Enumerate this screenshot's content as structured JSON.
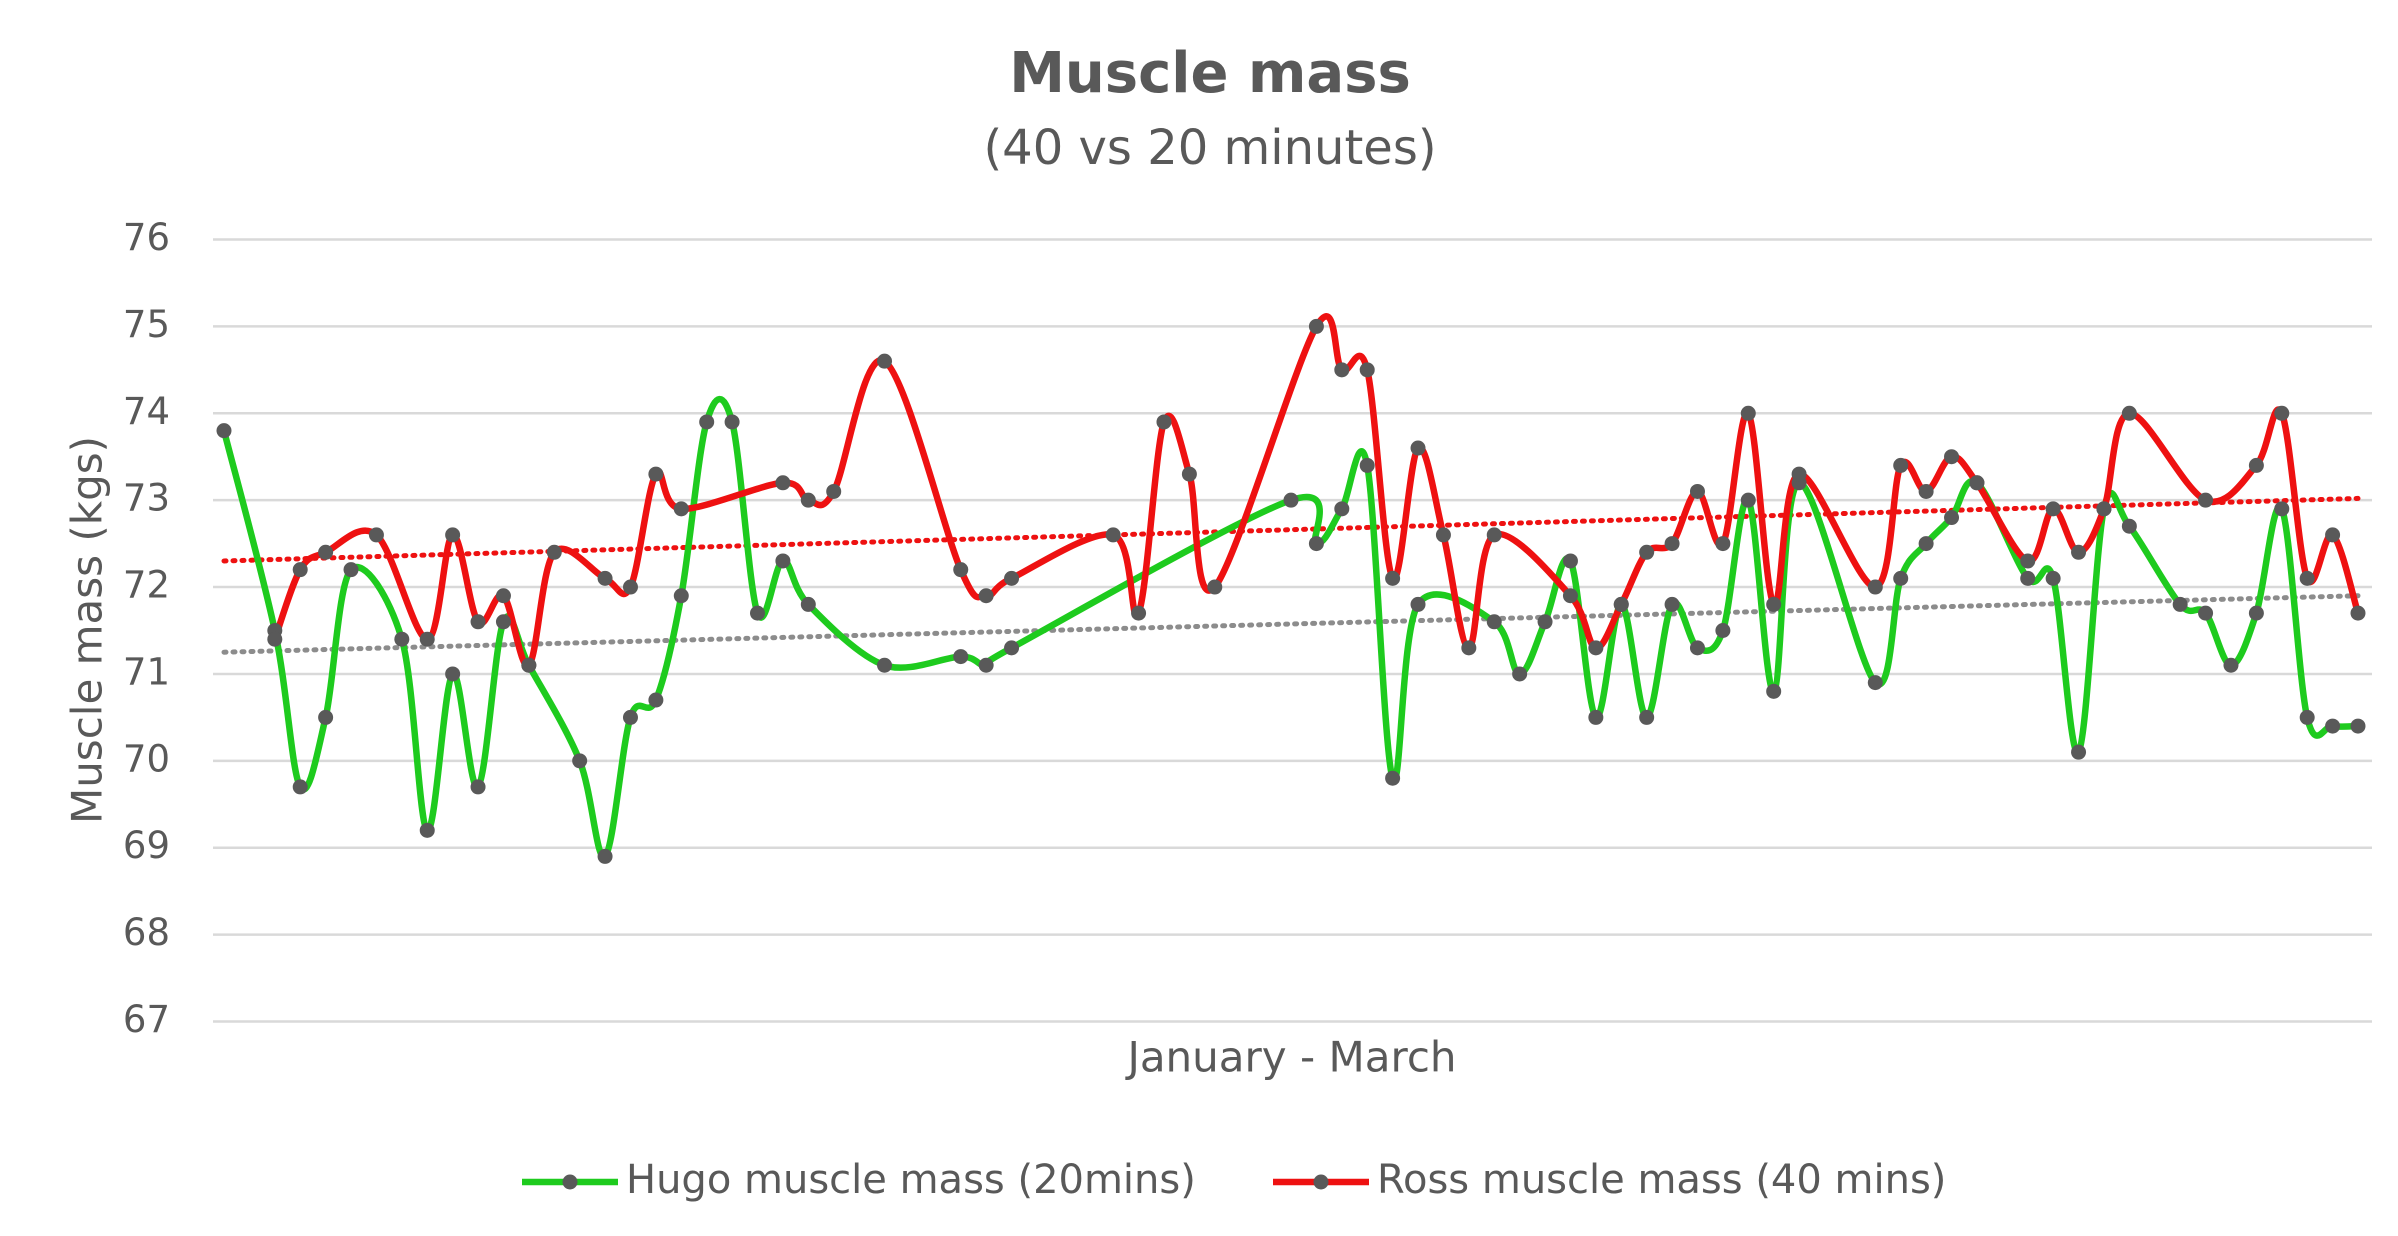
{
  "chart_data": {
    "type": "line",
    "title": "Muscle mass",
    "subtitle": "(40 vs 20 minutes)",
    "x_label": "January - March",
    "y_label": "Muscle mass (kgs)",
    "categories": [
      null,
      null,
      null,
      null,
      null,
      null,
      null,
      null,
      null,
      null,
      null,
      null,
      null,
      null,
      null,
      null,
      null,
      null,
      null,
      null,
      null,
      null,
      null,
      null,
      null,
      null,
      null,
      null,
      null,
      null,
      null,
      null,
      null,
      null,
      null,
      null,
      null,
      null,
      null,
      null,
      null,
      null,
      null,
      null,
      null,
      null,
      null,
      null,
      null,
      null,
      null,
      null,
      null,
      null,
      null,
      null,
      null,
      null,
      null,
      null,
      null,
      null,
      null,
      null,
      null,
      null,
      null,
      null,
      null,
      null,
      null,
      null,
      null,
      null,
      null,
      null,
      null,
      null,
      null,
      null,
      null,
      null,
      null,
      null,
      null
    ],
    "ylim": [
      67,
      76
    ],
    "yticks": [
      67,
      68,
      69,
      70,
      71,
      72,
      73,
      74,
      75,
      76
    ],
    "grid": true,
    "smooth": true,
    "span_gaps": true,
    "legend": "bottom",
    "marker_color": "#595959",
    "series": [
      {
        "name": "Hugo muscle mass (20mins)",
        "color": "#1ecb1e",
        "trend_color": "#8c8c8c",
        "trend_values": [
          71.25,
          71.9
        ],
        "values": [
          73.8,
          null,
          71.5,
          69.7,
          70.5,
          72.2,
          null,
          71.4,
          69.2,
          71.0,
          69.7,
          71.6,
          71.1,
          null,
          70.0,
          68.9,
          70.5,
          70.7,
          71.9,
          73.9,
          73.9,
          71.7,
          72.3,
          71.8,
          null,
          null,
          71.1,
          null,
          null,
          71.2,
          71.1,
          71.3,
          null,
          null,
          null,
          null,
          null,
          null,
          null,
          null,
          null,
          null,
          73.0,
          72.5,
          72.9,
          73.4,
          69.8,
          71.8,
          null,
          null,
          71.6,
          71.0,
          71.6,
          72.3,
          70.5,
          71.8,
          70.5,
          71.8,
          71.3,
          71.5,
          73.0,
          70.8,
          73.2,
          null,
          null,
          70.9,
          72.1,
          72.5,
          72.8,
          73.2,
          null,
          72.1,
          72.1,
          70.1,
          72.9,
          72.7,
          null,
          71.8,
          71.7,
          71.1,
          71.7,
          72.9,
          70.5,
          70.4,
          70.4
        ]
      },
      {
        "name": "Ross muscle mass (40 mins)",
        "color": "#ee1111",
        "trend_color": "#ee1111",
        "trend_values": [
          72.3,
          73.02
        ],
        "values": [
          null,
          null,
          71.4,
          72.2,
          72.4,
          null,
          72.6,
          null,
          71.4,
          72.6,
          71.6,
          71.9,
          71.1,
          72.4,
          null,
          72.1,
          72.0,
          73.3,
          72.9,
          null,
          null,
          null,
          73.2,
          73.0,
          73.1,
          null,
          74.6,
          null,
          null,
          72.2,
          71.9,
          72.1,
          null,
          null,
          null,
          72.6,
          71.7,
          73.9,
          73.3,
          72.0,
          null,
          null,
          null,
          75.0,
          74.5,
          74.5,
          72.1,
          73.6,
          72.6,
          71.3,
          72.6,
          null,
          null,
          71.9,
          71.3,
          71.8,
          72.4,
          72.5,
          73.1,
          72.5,
          74.0,
          71.8,
          73.3,
          null,
          null,
          72.0,
          73.4,
          73.1,
          73.5,
          73.2,
          null,
          72.3,
          72.9,
          72.4,
          72.9,
          74.0,
          null,
          null,
          73.0,
          null,
          73.4,
          74.0,
          72.1,
          72.6,
          71.7
        ]
      }
    ]
  }
}
